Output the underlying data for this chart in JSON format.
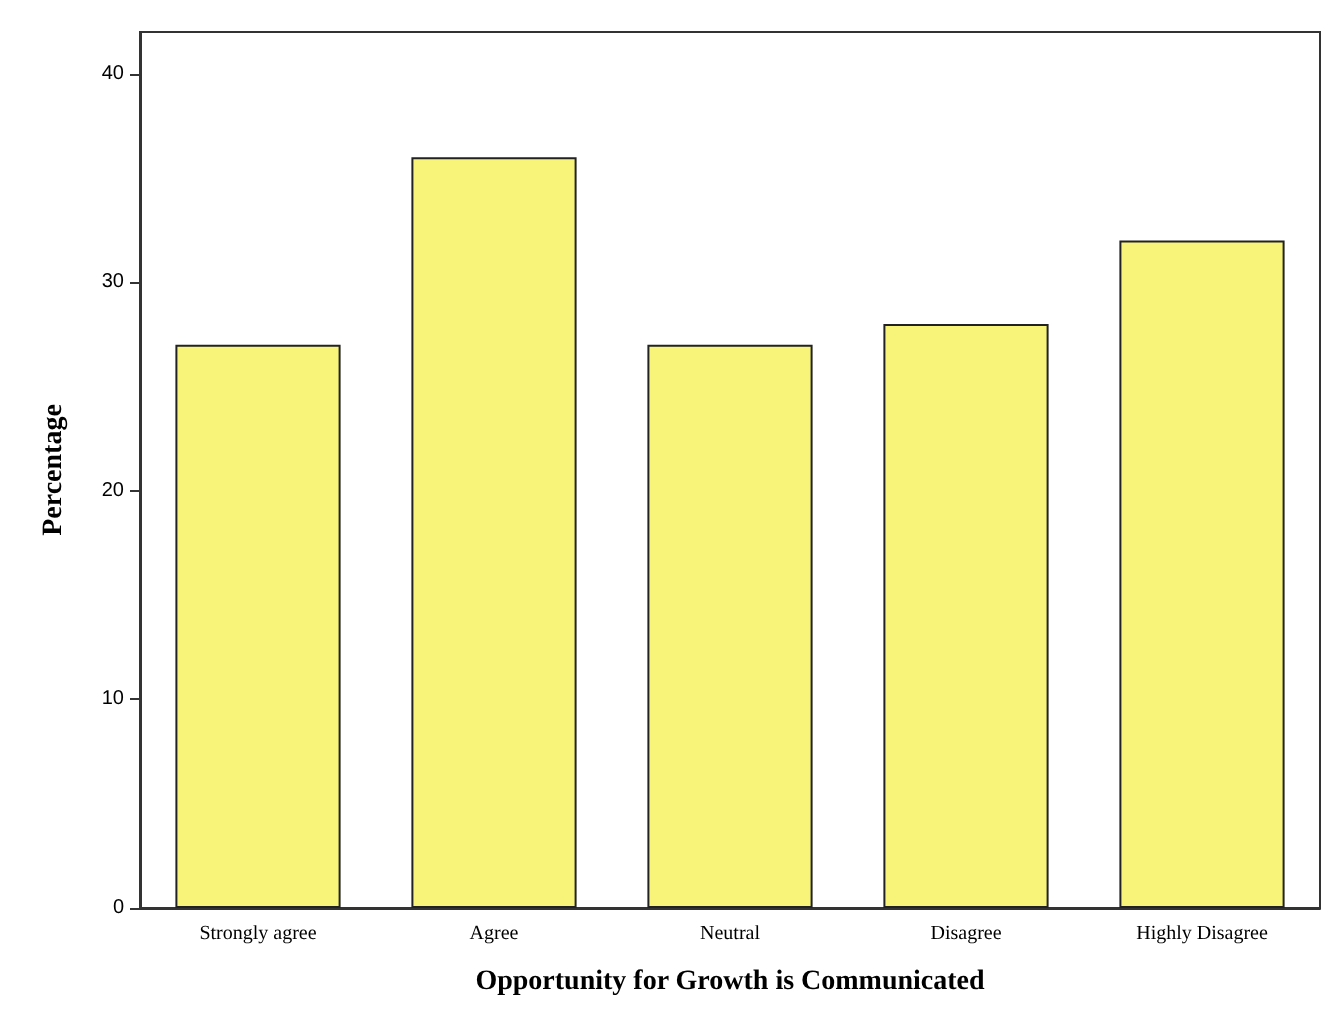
{
  "chart_data": {
    "type": "bar",
    "xlabel": "Opportunity for Growth is Communicated",
    "ylabel": "Percentage",
    "categories": [
      "Strongly agree",
      "Agree",
      "Neutral",
      "Disagree",
      "Highly Disagree"
    ],
    "values": [
      27,
      36,
      27,
      28,
      32
    ],
    "color": "#f8f47a",
    "ylim": [
      0,
      42
    ],
    "yticks": [
      0,
      10,
      20,
      30,
      40
    ],
    "grid": false
  }
}
